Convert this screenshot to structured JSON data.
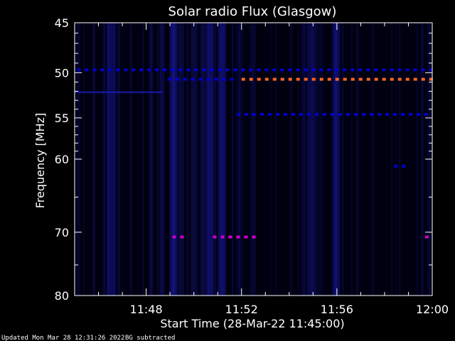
{
  "chart_data": {
    "type": "heatmap",
    "title": "Solar radio Flux (Glasgow)",
    "xlabel": "Start Time (28-Mar-22 11:45:00)",
    "ylabel": "Frequency [MHz]",
    "xlim": [
      0,
      15
    ],
    "ylim": [
      45,
      80
    ],
    "x_tick_labels": [
      "11:48",
      "11:52",
      "11:56",
      "12:00"
    ],
    "x_ticks": [
      3,
      7,
      11,
      15
    ],
    "y_ticks": [
      45,
      50,
      55,
      60,
      70,
      80
    ],
    "y_tick_labels": [
      "45",
      "50",
      "55",
      "60",
      "70",
      "80"
    ],
    "background_color": "#000011",
    "colors": {
      "low": "#0000cc",
      "mid": "#cc00cc",
      "high": "#ff6622",
      "axis": "#ffffff"
    },
    "features": [
      {
        "kind": "dashed-line",
        "freq": 49.7,
        "x_start": 0.1,
        "x_end": 15,
        "color": "#0000cc"
      },
      {
        "kind": "dashed-line",
        "freq": 50.7,
        "x_start": 3.9,
        "x_end": 6.8,
        "color": "#0000cc"
      },
      {
        "kind": "dashed-line",
        "freq": 50.7,
        "x_start": 7.0,
        "x_end": 15,
        "color": "#ff6622"
      },
      {
        "kind": "solid-line",
        "freq": 52.1,
        "x_start": 0,
        "x_end": 3.7,
        "color": "#1a1aaa"
      },
      {
        "kind": "dashed-line",
        "freq": 54.6,
        "x_start": 6.8,
        "x_end": 15,
        "color": "#0000cc"
      },
      {
        "kind": "dashed-line",
        "freq": 60.9,
        "x_start": 13.4,
        "x_end": 13.8,
        "color": "#0000cc"
      },
      {
        "kind": "dashed-line",
        "freq": 70.7,
        "x_start": 4.1,
        "x_end": 4.5,
        "color": "#cc00cc"
      },
      {
        "kind": "dashed-line",
        "freq": 70.7,
        "x_start": 5.8,
        "x_end": 7.6,
        "color": "#cc00cc"
      },
      {
        "kind": "dashed-line",
        "freq": 70.7,
        "x_start": 14.7,
        "x_end": 15,
        "color": "#cc00cc"
      }
    ],
    "haze_columns": [
      {
        "x_start": 3.0,
        "x_end": 5.5,
        "intensity": 0.5
      },
      {
        "x_start": 5.5,
        "x_end": 6.2,
        "intensity": 0.35
      },
      {
        "x_start": 1.3,
        "x_end": 1.6,
        "intensity": 0.2
      },
      {
        "x_start": 9.5,
        "x_end": 10.2,
        "intensity": 0.2
      },
      {
        "x_start": 10.8,
        "x_end": 11.0,
        "intensity": 0.2
      }
    ]
  },
  "footer": {
    "updated": "Updated Mon Mar 28 12:31:26 2022",
    "bg": "BG subtracted"
  }
}
